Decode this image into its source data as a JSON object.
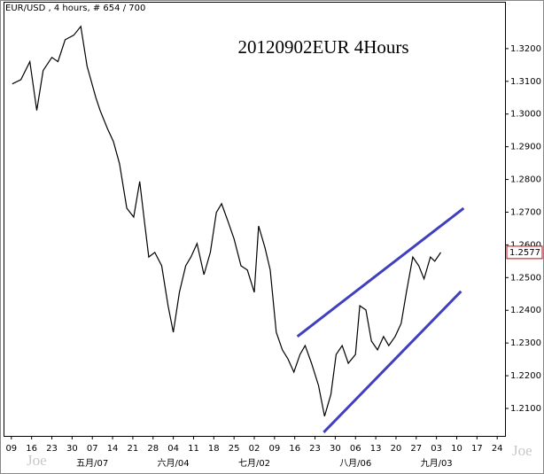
{
  "chart_data": {
    "type": "line",
    "header": "EUR/USD , 4 hours, # 654 / 700",
    "title": "20120902EUR 4Hours",
    "watermark": "Joe",
    "series": [
      {
        "name": "EUR/USD",
        "color": "#000000",
        "x": [
          0.3,
          3.3,
          6.4,
          8.8,
          11.0,
          14.0,
          16.1,
          18.6,
          21.6,
          24.0,
          26.2,
          29.2,
          30.7,
          33.2,
          35.3,
          37.4,
          39.9,
          42.3,
          44.4,
          46.0,
          47.5,
          49.6,
          52.0,
          54.2,
          56.0,
          58.1,
          60.3,
          62.1,
          64.2,
          66.6,
          68.8,
          70.9,
          72.7,
          74.9,
          77.0,
          79.4,
          81.6,
          84.0,
          85.5,
          87.7,
          89.5,
          91.6,
          93.7,
          95.6,
          97.7,
          99.8,
          101.6,
          103.8,
          106.2,
          108.3,
          110.5,
          112.3,
          114.4,
          116.5,
          119.0,
          120.5,
          122.6,
          124.5,
          126.6,
          128.7,
          130.5,
          132.7,
          134.8,
          136.6,
          138.8,
          140.9,
          142.7,
          144.9,
          146.4,
          148.5
        ],
        "values": [
          1.3092,
          1.3105,
          1.316,
          1.3011,
          1.3133,
          1.3173,
          1.316,
          1.3227,
          1.3241,
          1.3268,
          1.3146,
          1.3051,
          1.3011,
          1.2956,
          1.2916,
          1.2848,
          1.2712,
          1.2685,
          1.2794,
          1.2672,
          1.2563,
          1.2577,
          1.2536,
          1.2414,
          1.2333,
          1.2455,
          1.2536,
          1.2563,
          1.2604,
          1.2509,
          1.2577,
          1.2699,
          1.2726,
          1.2672,
          1.2618,
          1.2536,
          1.2523,
          1.2455,
          1.2658,
          1.2591,
          1.2523,
          1.2333,
          1.2279,
          1.2252,
          1.2211,
          1.2265,
          1.2292,
          1.2238,
          1.217,
          1.2076,
          1.2143,
          1.2265,
          1.2292,
          1.2238,
          1.2265,
          1.2414,
          1.2401,
          1.2306,
          1.2279,
          1.232,
          1.2292,
          1.232,
          1.236,
          1.2455,
          1.2563,
          1.2536,
          1.2496,
          1.2563,
          1.255,
          1.2577
        ]
      }
    ],
    "last_price": 1.2577,
    "last_price_color": "#cc0000",
    "trendlines": [
      {
        "color": "#3f3fbf",
        "x": [
          98.9,
          156.4
        ],
        "y": [
          1.232,
          1.2712
        ]
      },
      {
        "color": "#3f3fbf",
        "x": [
          108.0,
          155.5
        ],
        "y": [
          1.2027,
          1.2458
        ]
      }
    ],
    "xlim": [
      -2.7,
      170.7
    ],
    "xticks": [
      {
        "value": 0,
        "label": "09"
      },
      {
        "value": 7,
        "label": "16"
      },
      {
        "value": 14,
        "label": "23"
      },
      {
        "value": 21,
        "label": "30"
      },
      {
        "value": 28,
        "label": "07"
      },
      {
        "value": 35,
        "label": "14"
      },
      {
        "value": 42,
        "label": "21"
      },
      {
        "value": 49,
        "label": "28"
      },
      {
        "value": 56,
        "label": "04"
      },
      {
        "value": 63,
        "label": "11"
      },
      {
        "value": 70,
        "label": "18"
      },
      {
        "value": 77,
        "label": "25"
      },
      {
        "value": 84,
        "label": "02"
      },
      {
        "value": 91,
        "label": "09"
      },
      {
        "value": 98,
        "label": "16"
      },
      {
        "value": 105,
        "label": "23"
      },
      {
        "value": 112,
        "label": "30"
      },
      {
        "value": 119,
        "label": "06"
      },
      {
        "value": 126,
        "label": "13"
      },
      {
        "value": 133,
        "label": "20"
      },
      {
        "value": 140,
        "label": "27"
      },
      {
        "value": 147,
        "label": "03"
      },
      {
        "value": 154,
        "label": "10"
      },
      {
        "value": 161,
        "label": "17"
      },
      {
        "value": 168,
        "label": "24"
      }
    ],
    "month_ticks": [
      {
        "value": 28,
        "label": "五月/07"
      },
      {
        "value": 56,
        "label": "六月/04"
      },
      {
        "value": 84,
        "label": "七月/02"
      },
      {
        "value": 119,
        "label": "八月/06"
      },
      {
        "value": 147,
        "label": "九月/03"
      }
    ],
    "ylim": [
      1.2016,
      1.3308
    ],
    "yticks": [
      {
        "value": 1.21,
        "label": "1.2100"
      },
      {
        "value": 1.22,
        "label": "1.2200"
      },
      {
        "value": 1.23,
        "label": "1.2300"
      },
      {
        "value": 1.24,
        "label": "1.2400"
      },
      {
        "value": 1.25,
        "label": "1.2500"
      },
      {
        "value": 1.26,
        "label": "1.2600"
      },
      {
        "value": 1.27,
        "label": "1.2700"
      },
      {
        "value": 1.28,
        "label": "1.2800"
      },
      {
        "value": 1.29,
        "label": "1.2900"
      },
      {
        "value": 1.3,
        "label": "1.3000"
      },
      {
        "value": 1.31,
        "label": "1.3100"
      },
      {
        "value": 1.32,
        "label": "1.3200"
      }
    ],
    "grid": false
  }
}
